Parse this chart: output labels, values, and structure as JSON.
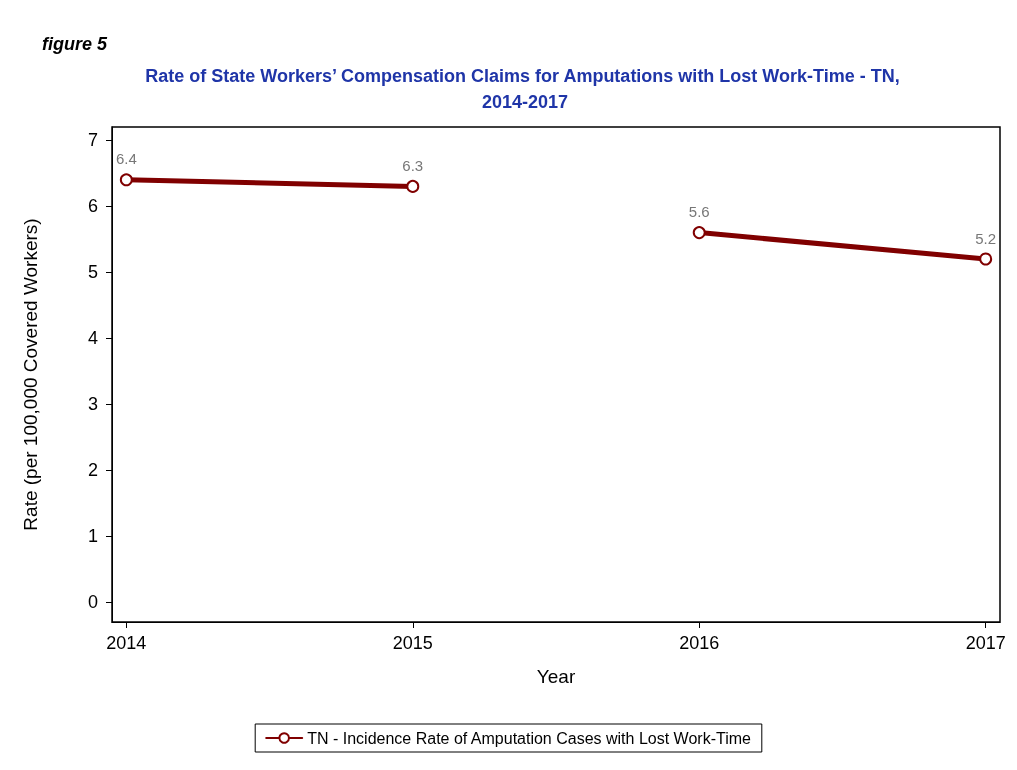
{
  "chart_data": {
    "type": "line",
    "title": "Rate of State Workers’ Compensation Claims for Amputations with Lost Work-Time - TN, 2014-2017",
    "xlabel": "Year",
    "ylabel": "Rate (per 100,000 Covered Workers)",
    "annotations": [
      "figure 5"
    ],
    "x": [
      2014,
      2015,
      2015.5,
      2016,
      2017
    ],
    "series": [
      {
        "name": "TN - Incidence Rate of Amputation Cases with Lost Work-Time",
        "color": "#800000",
        "values": [
          6.4,
          6.3,
          null,
          5.6,
          5.2
        ]
      }
    ],
    "xlim": [
      2013.95,
      2017.05
    ],
    "xticks": [
      2014,
      2015,
      2016,
      2017
    ],
    "ylim": [
      -0.3,
      7.2
    ],
    "yticks": [
      0,
      1,
      2,
      3,
      4,
      5,
      6,
      7
    ],
    "data_labels": true,
    "legend": "bottom",
    "grid": false,
    "marker": "circle",
    "line_style": "solid"
  }
}
